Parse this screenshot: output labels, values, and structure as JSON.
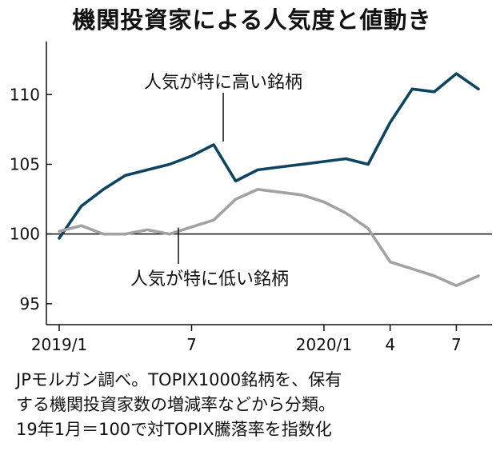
{
  "chart_data": {
    "type": "line",
    "title": "機関投資家による人気度と値動き",
    "x_tick_labels": [
      "2019/1",
      "7",
      "2020/1",
      "4",
      "7"
    ],
    "x": [
      "2019/1",
      "2019/2",
      "2019/3",
      "2019/4",
      "2019/5",
      "2019/6",
      "2019/7",
      "2019/8",
      "2019/9",
      "2019/10",
      "2019/11",
      "2019/12",
      "2020/1",
      "2020/2",
      "2020/3",
      "2020/4",
      "2020/5",
      "2020/6",
      "2020/7",
      "2020/8"
    ],
    "y_ticks": [
      95,
      100,
      105,
      110
    ],
    "ylim": [
      93.5,
      113.8
    ],
    "baseline": 100,
    "series": [
      {
        "name": "人気が特に高い銘柄",
        "color": "#0d4460",
        "values": [
          99.7,
          102.0,
          103.2,
          104.2,
          104.6,
          105.0,
          105.6,
          106.4,
          103.8,
          104.6,
          104.8,
          105.0,
          105.2,
          105.4,
          105.0,
          108.0,
          110.4,
          110.2,
          111.5,
          110.4
        ]
      },
      {
        "name": "人気が特に低い銘柄",
        "color": "#a2a2a6",
        "values": [
          100.2,
          100.6,
          100.0,
          100.0,
          100.3,
          100.0,
          100.5,
          101.0,
          102.5,
          103.2,
          103.0,
          102.8,
          102.3,
          101.5,
          100.4,
          98.0,
          97.5,
          97.0,
          96.3,
          97.0
        ]
      }
    ],
    "annotations": [
      "人気が特に高い銘柄",
      "人気が特に低い銘柄"
    ]
  },
  "source_note": {
    "line1": "JPモルガン調べ。TOPIX1000銘柄を、保有",
    "line2": "する機関投資家数の増減率などから分類。",
    "line3": "19年1月＝100で対TOPIX騰落率を指数化"
  }
}
